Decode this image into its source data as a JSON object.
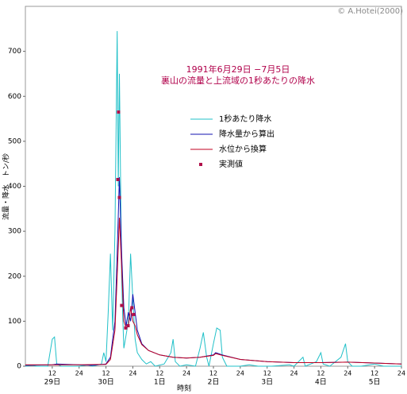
{
  "chart_data": {
    "type": "line",
    "title": "1991年6月29日 −7月5日",
    "subtitle": "裏山の流量と上流域の1秒あたりの降水",
    "credit": "© A.Hotei(2000)",
    "x_label": "時刻",
    "y_label": "流量・降水　トン/秒",
    "xlim": [
      0,
      168
    ],
    "ylim": [
      0,
      800
    ],
    "yticks": [
      0,
      100,
      200,
      300,
      400,
      500,
      600,
      700
    ],
    "xticks": [
      12,
      24,
      {
        "value": 36,
        "label": "12"
      },
      {
        "value": 48,
        "label": "24"
      },
      {
        "value": 60,
        "label": "12"
      },
      {
        "value": 72,
        "label": "24"
      },
      {
        "value": 84,
        "label": "12"
      },
      {
        "value": 96,
        "label": "24"
      },
      {
        "value": 108,
        "label": "12"
      },
      {
        "value": 120,
        "label": "24"
      },
      {
        "value": 132,
        "label": "12"
      },
      {
        "value": 144,
        "label": "24"
      },
      {
        "value": 156,
        "label": "12"
      },
      {
        "value": 168,
        "label": "24"
      }
    ],
    "day_labels": [
      {
        "value": 12,
        "label": "29日"
      },
      {
        "value": 36,
        "label": "30日"
      },
      {
        "value": 60,
        "label": "1日"
      },
      {
        "value": 84,
        "label": "2日"
      },
      {
        "value": 108,
        "label": "3日"
      },
      {
        "value": 132,
        "label": "4日"
      },
      {
        "value": 156,
        "label": "5日"
      }
    ],
    "series": [
      {
        "name": "1秒あたり降水",
        "color": "#20c0c8",
        "kind": "line",
        "x": [
          0,
          3,
          5,
          10,
          12,
          13,
          14,
          16,
          24,
          28,
          30,
          34,
          35,
          36,
          37,
          38,
          39,
          40,
          41,
          41.5,
          42,
          43,
          43.5,
          44,
          45,
          46,
          47,
          48,
          49,
          50,
          52,
          54,
          56,
          58,
          62,
          65,
          66,
          67,
          69,
          72,
          76,
          78,
          79.5,
          81,
          82,
          84,
          85.5,
          87,
          88,
          90,
          96,
          100,
          104,
          110,
          118,
          120,
          124,
          125,
          130,
          132,
          133,
          136,
          141,
          143,
          144,
          146,
          150,
          156,
          160,
          168
        ],
        "values": [
          0,
          2,
          0,
          0,
          60,
          65,
          5,
          0,
          0,
          3,
          0,
          5,
          30,
          10,
          120,
          250,
          80,
          300,
          745,
          400,
          650,
          200,
          110,
          40,
          70,
          100,
          250,
          150,
          60,
          30,
          15,
          5,
          10,
          0,
          5,
          30,
          60,
          10,
          0,
          3,
          0,
          40,
          75,
          20,
          0,
          50,
          85,
          80,
          20,
          0,
          0,
          3,
          0,
          0,
          3,
          0,
          20,
          0,
          10,
          30,
          5,
          0,
          20,
          50,
          10,
          0,
          0,
          5,
          0,
          0
        ]
      },
      {
        "name": "降水量から算出",
        "color": "#1010b0",
        "kind": "line",
        "x": [
          0,
          12,
          14,
          24,
          30,
          36,
          38,
          40,
          41,
          42,
          43,
          44,
          45,
          46,
          47,
          48,
          49,
          50,
          52,
          55,
          60,
          66,
          72,
          78,
          84,
          85,
          88,
          96,
          108,
          120,
          132,
          144,
          156,
          168
        ],
        "values": [
          2,
          3,
          5,
          3,
          2,
          5,
          20,
          100,
          250,
          420,
          250,
          130,
          90,
          120,
          100,
          160,
          120,
          80,
          50,
          35,
          25,
          20,
          18,
          20,
          25,
          30,
          25,
          15,
          10,
          8,
          8,
          9,
          7,
          5
        ]
      },
      {
        "name": "水位から換算",
        "color": "#c00020",
        "kind": "line",
        "x": [
          0,
          12,
          24,
          36,
          38,
          40,
          41,
          42,
          43,
          44,
          45,
          46,
          47,
          48,
          49,
          50,
          52,
          55,
          60,
          66,
          72,
          78,
          84,
          85,
          88,
          96,
          108,
          120,
          132,
          144,
          156,
          168
        ],
        "values": [
          3,
          3,
          3,
          4,
          15,
          80,
          200,
          330,
          220,
          100,
          85,
          90,
          130,
          100,
          90,
          70,
          48,
          35,
          25,
          20,
          18,
          20,
          24,
          28,
          24,
          15,
          10,
          8,
          8,
          9,
          7,
          5
        ]
      },
      {
        "name": "実測値",
        "color": "#b0104a",
        "kind": "scatter",
        "x": [
          41.3,
          41.6,
          42,
          43,
          44.8,
          45.9,
          47.6,
          48.4
        ],
        "values": [
          415,
          565,
          375,
          135,
          85,
          90,
          130,
          115
        ]
      }
    ]
  }
}
